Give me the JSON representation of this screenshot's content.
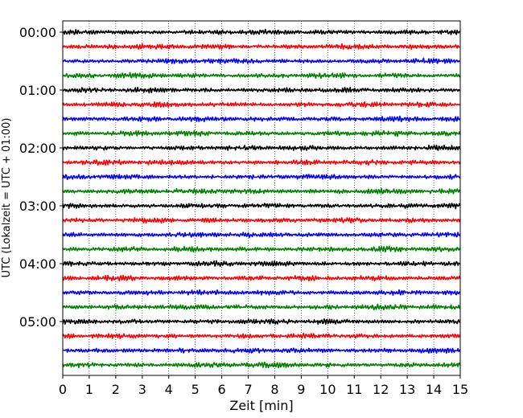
{
  "chart_data": {
    "type": "line",
    "title": "",
    "xlabel": "Zeit  [min]",
    "ylabel": "UTC (Lokalzeit = UTC + 01:00)",
    "xlim": [
      0,
      15
    ],
    "xticks": [
      0,
      1,
      2,
      3,
      4,
      5,
      6,
      7,
      8,
      9,
      10,
      11,
      12,
      13,
      14,
      15
    ],
    "ytick_labels": [
      "00:00",
      "01:00",
      "02:00",
      "03:00",
      "04:00",
      "05:00"
    ],
    "trace_start_times": [
      "00:00",
      "00:15",
      "00:30",
      "00:45",
      "01:00",
      "01:15",
      "01:30",
      "01:45",
      "02:00",
      "02:15",
      "02:30",
      "02:45",
      "03:00",
      "03:15",
      "03:30",
      "03:45",
      "04:00",
      "04:15",
      "04:30",
      "04:45",
      "05:00",
      "05:15",
      "05:30",
      "05:45"
    ],
    "trace_colors": [
      "#000000",
      "#ff0000",
      "#0000ff",
      "#008000"
    ],
    "grid": "vertical dotted",
    "legend": false
  }
}
